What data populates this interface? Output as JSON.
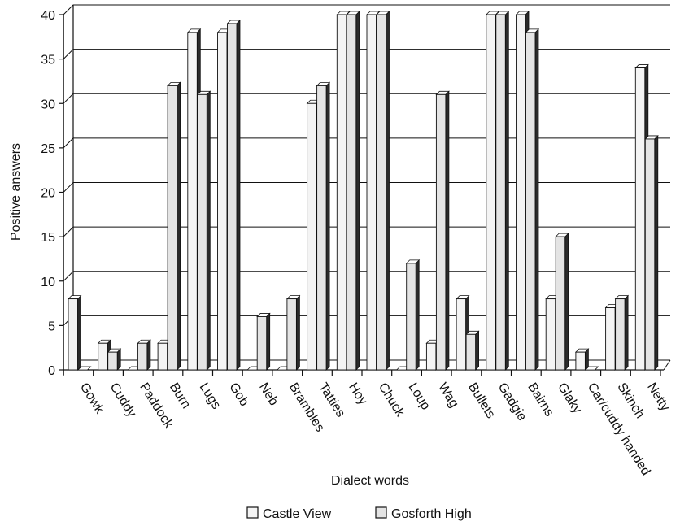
{
  "chart_data": {
    "type": "bar",
    "style": "3d-clustered-column",
    "xlabel": "Dialect words",
    "ylabel": "Positive answers",
    "ylim": [
      0,
      40
    ],
    "yticks": [
      0,
      5,
      10,
      15,
      20,
      25,
      30,
      35,
      40
    ],
    "grid": true,
    "legend_position": "bottom-center",
    "categories": [
      "Gowk",
      "Cuddy",
      "Paddock",
      "Burn",
      "Lugs",
      "Gob",
      "Neb",
      "Brambles",
      "Tatties",
      "Hoy",
      "Chuck",
      "Loup",
      "Wag",
      "Bullets",
      "Gadgie",
      "Bairns",
      "Glaky",
      "Car/cuddy handed",
      "Skinch",
      "Netty"
    ],
    "series": [
      {
        "name": "Castle View",
        "values": [
          8,
          3,
          0,
          3,
          38,
          38,
          0,
          0,
          30,
          40,
          40,
          0,
          3,
          8,
          40,
          40,
          8,
          2,
          7,
          34
        ]
      },
      {
        "name": "Gosforth High",
        "values": [
          0,
          2,
          3,
          32,
          31,
          39,
          6,
          8,
          32,
          40,
          40,
          12,
          31,
          4,
          40,
          38,
          15,
          0,
          8,
          26
        ]
      }
    ],
    "colors": {
      "castle_view": "#f4f4f4",
      "gosforth_high": "#e4e4e4",
      "bar_side": "#2a2a2a",
      "axis": "#111111"
    }
  }
}
